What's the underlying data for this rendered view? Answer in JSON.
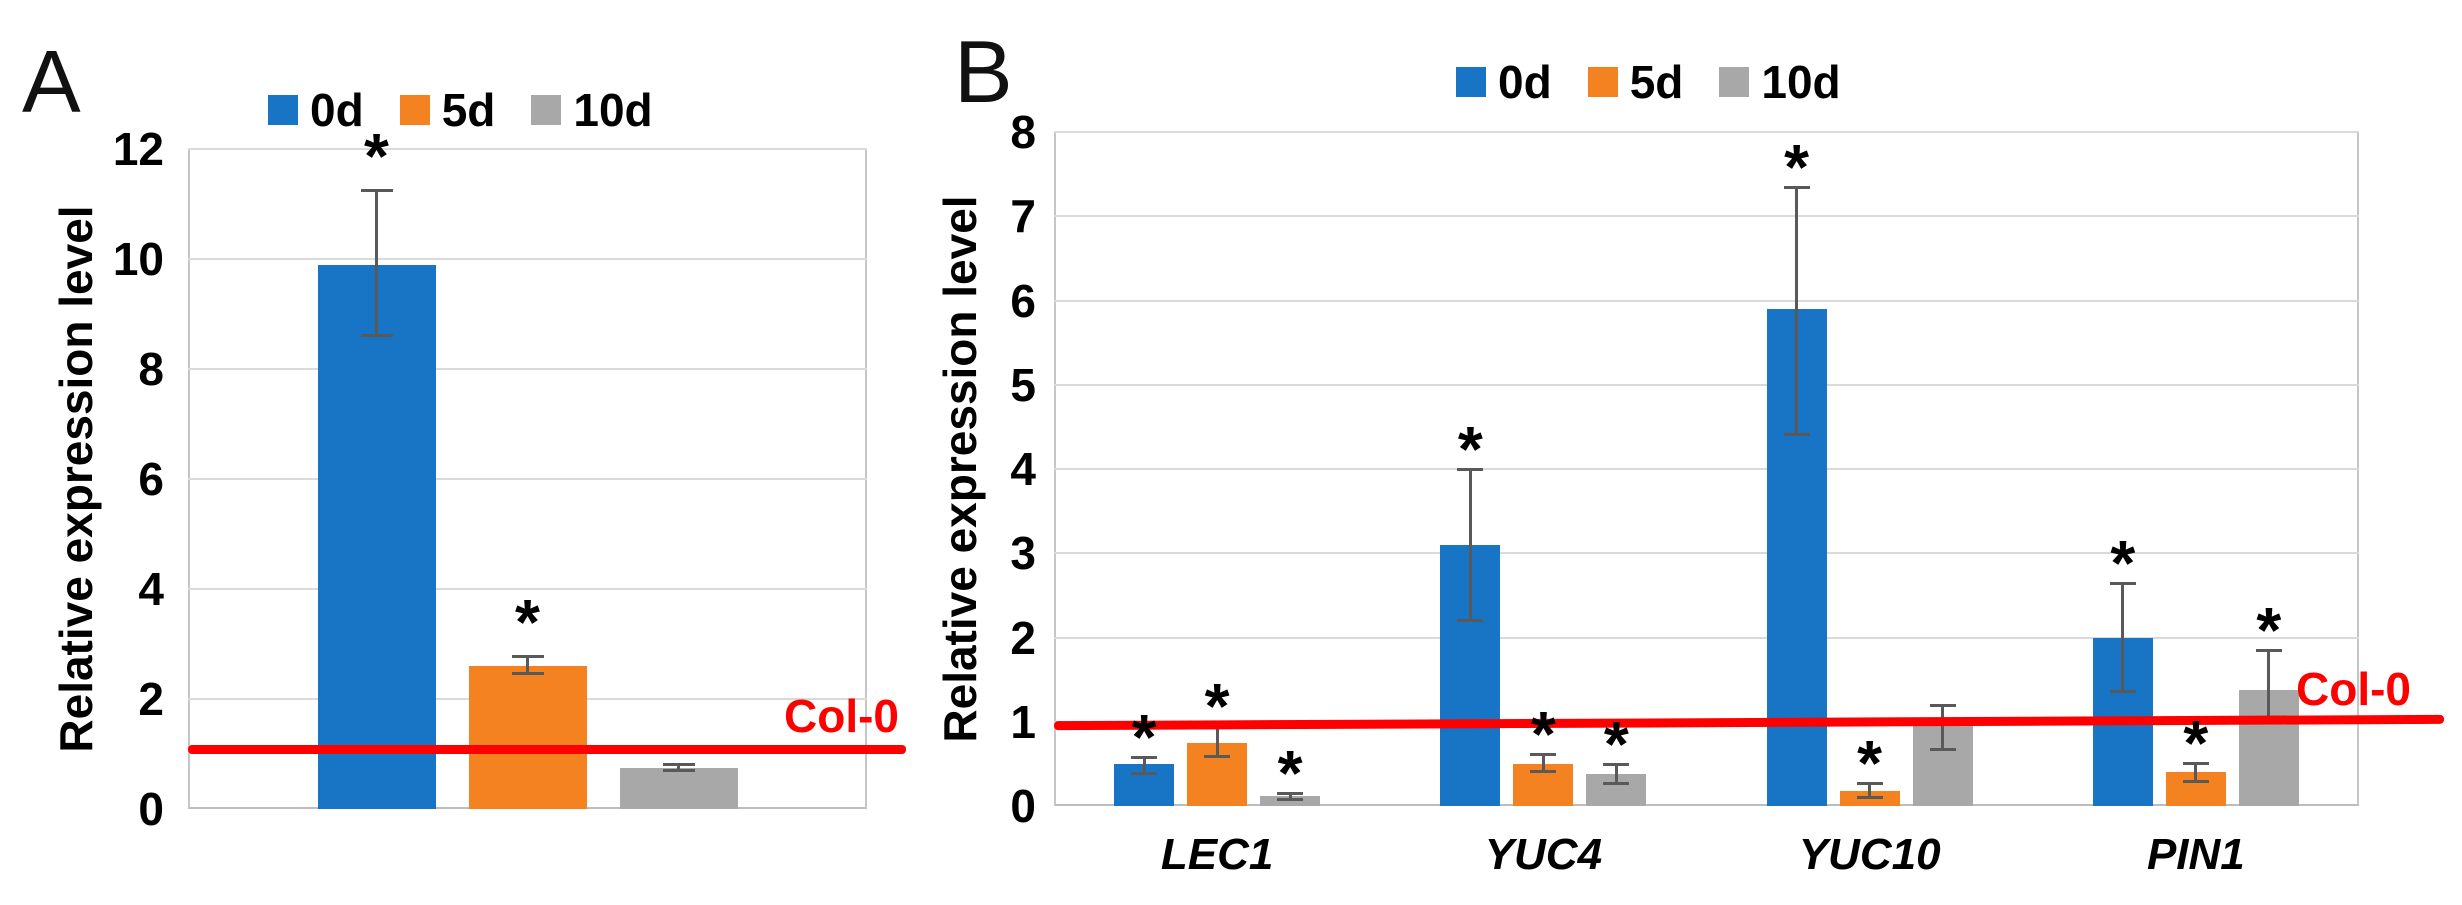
{
  "figure": {
    "background": "#ffffff",
    "colors": {
      "series": {
        "0d": "#1874c5",
        "5d": "#f58220",
        "10d": "#a8a8a8"
      },
      "ref_line": "#ff0000",
      "error_bar": "#595959",
      "gridline": "#dadada",
      "axis_border": "#c6c6c6",
      "text": "#000000"
    }
  },
  "legend": {
    "items": [
      {
        "label": "0d",
        "color": "#1874c5"
      },
      {
        "label": "5d",
        "color": "#f58220"
      },
      {
        "label": "10d",
        "color": "#a8a8a8"
      }
    ],
    "position": "top"
  },
  "chart_data": [
    {
      "type": "bar",
      "panel_label": "A",
      "title": "",
      "xlabel": "",
      "ylabel": "Relative expression level",
      "ylim": [
        0,
        12
      ],
      "yticks": [
        0,
        2,
        4,
        6,
        8,
        10,
        12
      ],
      "grid": true,
      "legend_entries": [
        "0d",
        "5d",
        "10d"
      ],
      "categories": [
        ""
      ],
      "xtick_labels_visible": false,
      "series": [
        {
          "name": "0d",
          "values": [
            9.9
          ],
          "err_minus": [
            1.3
          ],
          "err_plus": [
            1.35
          ],
          "significant": [
            true
          ]
        },
        {
          "name": "5d",
          "values": [
            2.6
          ],
          "err_minus": [
            0.15
          ],
          "err_plus": [
            0.18
          ],
          "significant": [
            true
          ]
        },
        {
          "name": "10d",
          "values": [
            0.75
          ],
          "err_minus": [
            0.06
          ],
          "err_plus": [
            0.06
          ],
          "significant": [
            false
          ]
        }
      ],
      "ref_line": {
        "value": 1.1,
        "label": "Col-0"
      },
      "significance_symbol": "*"
    },
    {
      "type": "bar",
      "panel_label": "B",
      "title": "",
      "xlabel": "",
      "ylabel": "Relative expression level",
      "ylim": [
        0,
        8
      ],
      "yticks": [
        0,
        1,
        2,
        3,
        4,
        5,
        6,
        7,
        8
      ],
      "grid": true,
      "legend_entries": [
        "0d",
        "5d",
        "10d"
      ],
      "categories": [
        "LEC1",
        "YUC4",
        "YUC10",
        "PIN1"
      ],
      "xtick_labels_visible": true,
      "series": [
        {
          "name": "0d",
          "values": [
            0.5,
            3.1,
            5.9,
            2.0
          ],
          "err_minus": [
            0.12,
            0.9,
            1.5,
            0.65
          ],
          "err_plus": [
            0.08,
            0.9,
            1.45,
            0.65
          ],
          "significant": [
            true,
            true,
            true,
            true
          ]
        },
        {
          "name": "5d",
          "values": [
            0.75,
            0.5,
            0.18,
            0.4
          ],
          "err_minus": [
            0.17,
            0.1,
            0.08,
            0.11
          ],
          "err_plus": [
            0.2,
            0.12,
            0.09,
            0.11
          ],
          "significant": [
            true,
            true,
            true,
            true
          ]
        },
        {
          "name": "10d",
          "values": [
            0.12,
            0.38,
            0.95,
            1.38
          ],
          "err_minus": [
            0.05,
            0.12,
            0.28,
            0.36
          ],
          "err_plus": [
            0.04,
            0.12,
            0.25,
            0.47
          ],
          "significant": [
            true,
            true,
            false,
            true
          ]
        }
      ],
      "ref_line": {
        "value": 1.0,
        "label": "Col-0"
      },
      "significance_symbol": "*"
    }
  ]
}
